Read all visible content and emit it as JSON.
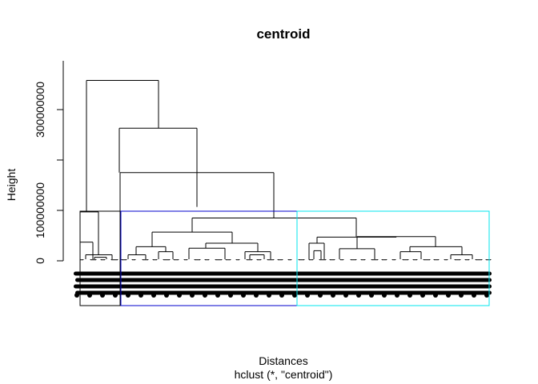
{
  "chart_data": {
    "type": "dendrogram",
    "title": "centroid",
    "xlabel": "Distances",
    "sub": "hclust (*, \"centroid\")",
    "ylabel": "Height",
    "ylim": [
      0,
      380000000
    ],
    "y_ticks": [
      0,
      100000000,
      200000000,
      300000000
    ],
    "y_tick_labels": [
      "0",
      "100000000",
      "",
      "300000000"
    ],
    "merge_heights": [
      358000000,
      263000000,
      175000000,
      107000000,
      97000000,
      85000000,
      57000000,
      47000000
    ],
    "cluster_boxes": [
      {
        "cluster": 1,
        "color": "#000000"
      },
      {
        "cluster": 2,
        "color": "#0000cd"
      },
      {
        "cluster": 3,
        "color": "#00e5ee"
      }
    ],
    "leaf_labels_color": "#000000",
    "grid": false
  }
}
